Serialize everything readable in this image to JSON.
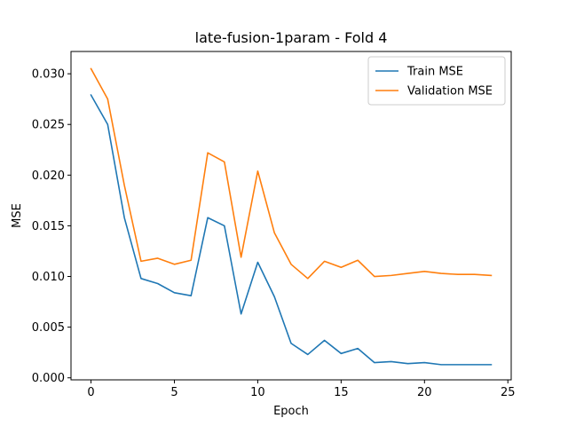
{
  "chart_data": {
    "type": "line",
    "title": "late-fusion-1param - Fold 4",
    "xlabel": "Epoch",
    "ylabel": "MSE",
    "xlim": [
      -1.2,
      25.2
    ],
    "ylim": [
      -0.0002,
      0.0322
    ],
    "xticks": [
      0,
      5,
      10,
      15,
      20,
      25
    ],
    "xtick_labels": [
      "0",
      "5",
      "10",
      "15",
      "20",
      "25"
    ],
    "yticks": [
      0.0,
      0.005,
      0.01,
      0.015,
      0.02,
      0.025,
      0.03
    ],
    "ytick_labels": [
      "0.000",
      "0.005",
      "0.010",
      "0.015",
      "0.020",
      "0.025",
      "0.030"
    ],
    "grid": false,
    "legend_position": "top-right",
    "x": [
      0,
      1,
      2,
      3,
      4,
      5,
      6,
      7,
      8,
      9,
      10,
      11,
      12,
      13,
      14,
      15,
      16,
      17,
      18,
      19,
      20,
      21,
      22,
      23,
      24
    ],
    "series": [
      {
        "name": "Train MSE",
        "color": "#1f77b4",
        "values": [
          0.0279,
          0.025,
          0.0158,
          0.0098,
          0.0093,
          0.0084,
          0.0081,
          0.0158,
          0.015,
          0.0063,
          0.0114,
          0.008,
          0.0034,
          0.0023,
          0.0037,
          0.0024,
          0.0029,
          0.0015,
          0.0016,
          0.0014,
          0.0015,
          0.0013,
          0.0013,
          0.0013,
          0.0013
        ]
      },
      {
        "name": "Validation MSE",
        "color": "#ff7f0e",
        "values": [
          0.0305,
          0.0275,
          0.019,
          0.0115,
          0.0118,
          0.0112,
          0.0116,
          0.0222,
          0.0213,
          0.0119,
          0.0204,
          0.0143,
          0.0112,
          0.0098,
          0.0115,
          0.0109,
          0.0116,
          0.01,
          0.0101,
          0.0103,
          0.0105,
          0.0103,
          0.0102,
          0.0102,
          0.0101
        ]
      }
    ]
  }
}
